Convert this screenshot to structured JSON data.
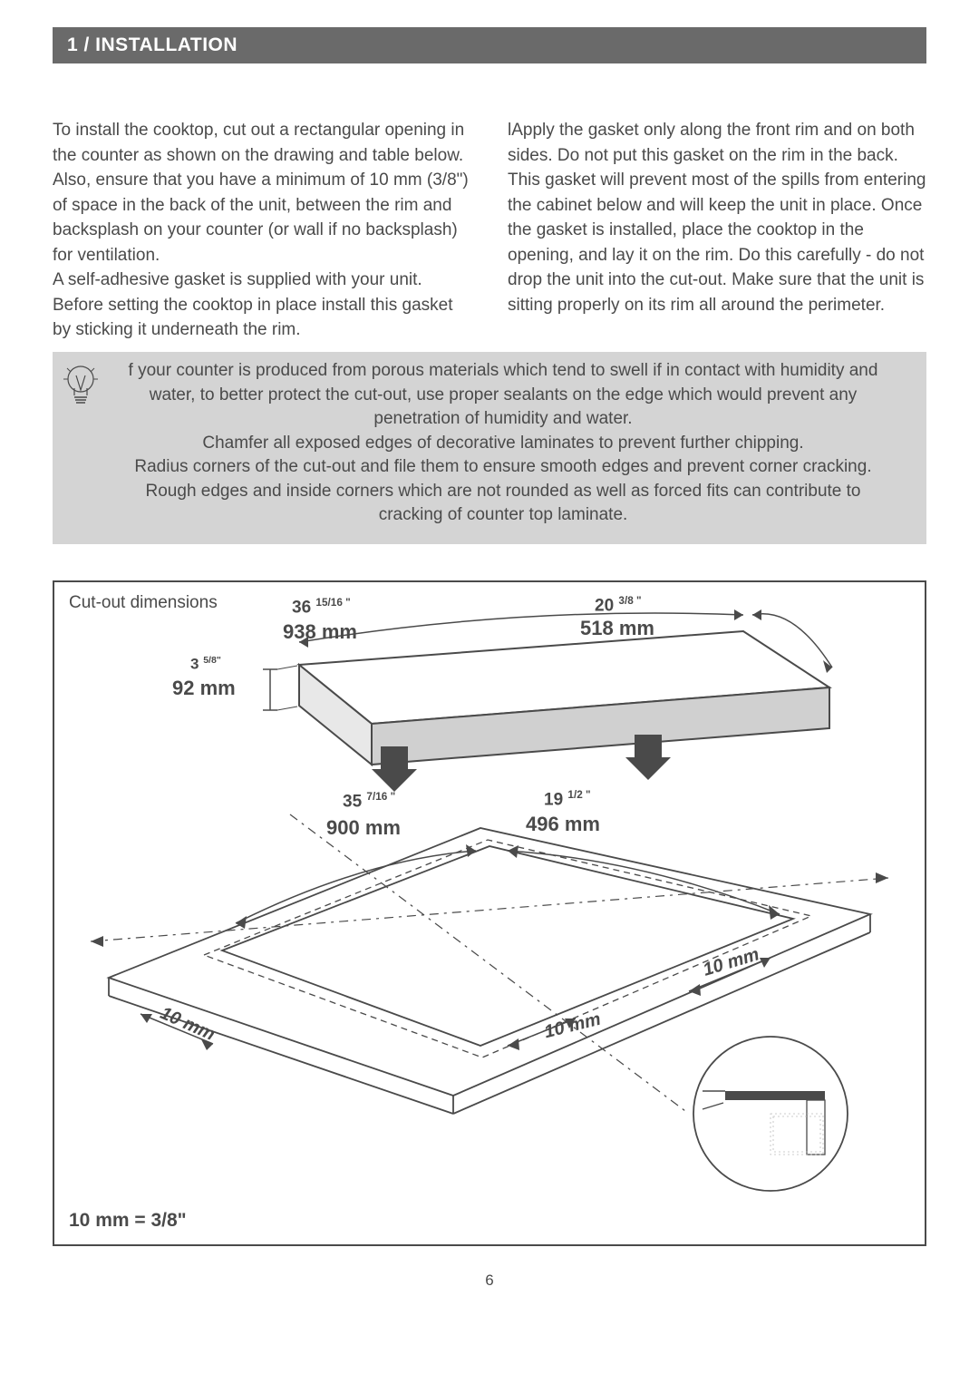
{
  "header": {
    "title": "1 / INSTALLATION"
  },
  "columns": {
    "left": "To install the cooktop, cut out a rectangular opening in the counter as shown on the drawing and table below. Also, ensure that you have a minimum of 10 mm (3/8\") of space in the back of the unit, between the rim and backsplash on your counter (or wall if no backsplash) for ventilation.\nA self-adhesive gasket is supplied with your unit. Before setting the cooktop in place install this gasket by sticking it underneath the rim.",
    "right": "lApply the gasket only along the front rim and on both sides. Do not put this gasket on the rim in the back. This gasket will prevent most of the spills from entering the cabinet below and will keep the unit in place. Once the gasket is installed, place the cooktop in the opening, and lay it on the rim. Do this carefully - do not drop the unit into the cut-out. Make sure that the unit is sitting properly on its rim all around the perimeter."
  },
  "tip": {
    "text": "f your counter is produced from porous materials which tend to swell if in contact with humidity and water, to better protect the cut-out, use proper sealants on the edge which would prevent any penetration of humidity and water.\nChamfer all exposed edges of decorative laminates to prevent further chipping.\nRadius corners of the cut-out and file them to ensure smooth edges and prevent corner cracking.\nRough edges and inside corners which are not rounded as well as forced fits can contribute to cracking of counter top laminate."
  },
  "diagram": {
    "title": "Cut-out dimensions",
    "note": "10 mm = 3/8\"",
    "outer_width_in": "36",
    "outer_width_frac": "15/16 \"",
    "outer_width_mm": "938 mm",
    "outer_depth_in": "20",
    "outer_depth_frac": "3/8 \"",
    "outer_depth_mm": "518 mm",
    "height_in": "3",
    "height_frac": "5/8\"",
    "height_mm": "92 mm",
    "cutout_width_in": "35",
    "cutout_width_frac": "7/16 \"",
    "cutout_width_mm": "900 mm",
    "cutout_depth_in": "19",
    "cutout_depth_frac": "1/2 \"",
    "cutout_depth_mm": "496 mm",
    "gap1": "10 mm",
    "gap2": "10 mm",
    "gap3": "10 mm",
    "colors": {
      "line": "#4a4a4a",
      "fill_top": "#ffffff",
      "fill_shade": "#d0d0d0",
      "dash": "#4a4a4a"
    }
  },
  "page_number": "6"
}
